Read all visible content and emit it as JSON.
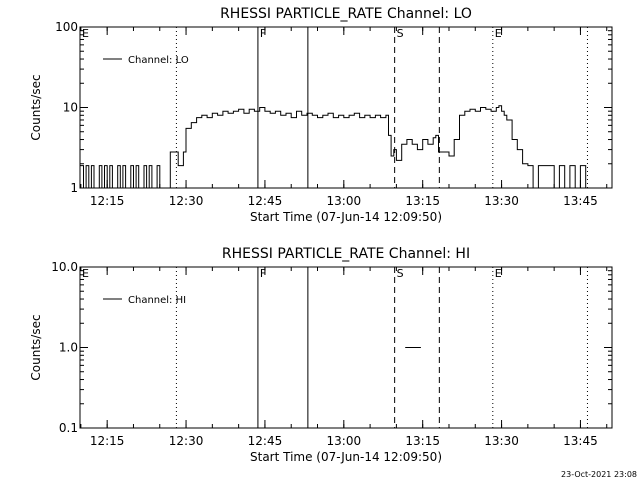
{
  "footer": {
    "timestamp": "23-Oct-2021 23:08"
  },
  "chart_data": [
    {
      "type": "line",
      "title": "RHESSI PARTICLE_RATE Channel: LO",
      "xlabel": "Start Time (07-Jun-14 12:09:50)",
      "ylabel": "Counts/sec",
      "yscale": "log",
      "ylim": [
        1,
        100
      ],
      "yticks": [
        1,
        10,
        100
      ],
      "ytick_labels": [
        "1",
        "10",
        "100"
      ],
      "xlim": [
        "12:09:50",
        "13:51:00"
      ],
      "xticks": [
        "12:15",
        "12:30",
        "12:45",
        "13:00",
        "13:15",
        "13:30",
        "13:45"
      ],
      "legend": {
        "position": "top-left",
        "entries": [
          "Channel: LO"
        ]
      },
      "series": [
        {
          "name": "Channel: LO",
          "x": [
            "12:09:50",
            "12:10:30",
            "12:11:00",
            "12:11:30",
            "12:12:00",
            "12:12:30",
            "12:13:00",
            "12:13:30",
            "12:14:00",
            "12:14:30",
            "12:15:00",
            "12:15:30",
            "12:16:00",
            "12:16:30",
            "12:17:00",
            "12:17:30",
            "12:18:00",
            "12:18:30",
            "12:19:00",
            "12:19:30",
            "12:20:00",
            "12:20:30",
            "12:21:00",
            "12:21:30",
            "12:22:00",
            "12:22:30",
            "12:23:00",
            "12:23:30",
            "12:24:00",
            "12:24:30",
            "12:25:00",
            "12:26:00",
            "12:27:00",
            "12:28:00",
            "12:28:30",
            "12:29:00",
            "12:29:30",
            "12:30:00",
            "12:31:00",
            "12:32:00",
            "12:33:00",
            "12:34:00",
            "12:35:00",
            "12:36:00",
            "12:37:00",
            "12:38:00",
            "12:39:00",
            "12:40:00",
            "12:41:00",
            "12:42:00",
            "12:43:00",
            "12:44:00",
            "12:45:00",
            "12:46:00",
            "12:47:00",
            "12:48:00",
            "12:49:00",
            "12:50:00",
            "12:51:00",
            "12:52:00",
            "12:53:00",
            "12:54:00",
            "12:55:00",
            "12:56:00",
            "12:57:00",
            "12:58:00",
            "12:59:00",
            "13:00:00",
            "13:01:00",
            "13:02:00",
            "13:03:00",
            "13:04:00",
            "13:05:00",
            "13:06:00",
            "13:07:00",
            "13:08:00",
            "13:08:30",
            "13:09:00",
            "13:09:30",
            "13:10:00",
            "13:11:00",
            "13:12:00",
            "13:13:00",
            "13:14:00",
            "13:15:00",
            "13:16:00",
            "13:17:00",
            "13:17:30",
            "13:18:00",
            "13:19:00",
            "13:20:00",
            "13:21:00",
            "13:22:00",
            "13:23:00",
            "13:24:00",
            "13:25:00",
            "13:26:00",
            "13:27:00",
            "13:28:00",
            "13:29:00",
            "13:29:30",
            "13:30:00",
            "13:30:30",
            "13:31:00",
            "13:32:00",
            "13:33:00",
            "13:34:00",
            "13:35:00",
            "13:36:00",
            "13:37:00",
            "13:38:00",
            "13:39:00",
            "13:40:00",
            "13:41:00",
            "13:42:00",
            "13:43:00",
            "13:44:00",
            "13:45:00",
            "13:46:00"
          ],
          "y": [
            1.9,
            1,
            1.9,
            1,
            1.9,
            1,
            1,
            1.9,
            1,
            1.9,
            1,
            1.9,
            1,
            1,
            1.9,
            1,
            1.9,
            1,
            1,
            1.9,
            1,
            1.9,
            1,
            1,
            1.9,
            1,
            1.9,
            1,
            1,
            1.9,
            1,
            1,
            2.8,
            2.8,
            1.9,
            1.9,
            2.8,
            5.5,
            6.5,
            7.5,
            8,
            7.5,
            8.5,
            8,
            9,
            8.5,
            9,
            9.5,
            8.5,
            9.5,
            9,
            10,
            9,
            8.5,
            9,
            8,
            8.5,
            7.5,
            9,
            8,
            8.5,
            8,
            7.5,
            8,
            8.5,
            7.5,
            8,
            7.5,
            8,
            8.5,
            7.5,
            8,
            7.5,
            8,
            7.5,
            8,
            4.5,
            2.5,
            3,
            2.2,
            3.5,
            4,
            3.5,
            3,
            4,
            3.5,
            4.2,
            4.5,
            2.8,
            2.8,
            2.5,
            4,
            8,
            9,
            9.5,
            9,
            10,
            9.5,
            9,
            10,
            10.5,
            9,
            8,
            7,
            4,
            3,
            2,
            1.9,
            1,
            1.9,
            1.9,
            1.9,
            1,
            1.9,
            1,
            1.9,
            1,
            1.9,
            1
          ]
        }
      ],
      "event_lines": [
        {
          "label": "E",
          "time": "12:09:50",
          "style": "dotted"
        },
        {
          "label": "",
          "time": "12:28:10",
          "style": "dotted"
        },
        {
          "label": "F",
          "time": "12:43:40",
          "style": "solid"
        },
        {
          "label": "",
          "time": "12:53:10",
          "style": "solid"
        },
        {
          "label": "S",
          "time": "13:09:40",
          "style": "dashed"
        },
        {
          "label": "",
          "time": "13:18:10",
          "style": "dashed"
        },
        {
          "label": "E",
          "time": "13:28:20",
          "style": "dotted"
        },
        {
          "label": "",
          "time": "13:46:20",
          "style": "dotted"
        }
      ]
    },
    {
      "type": "line",
      "title": "RHESSI PARTICLE_RATE Channel: HI",
      "xlabel": "Start Time (07-Jun-14 12:09:50)",
      "ylabel": "Counts/sec",
      "yscale": "log",
      "ylim": [
        0.1,
        10.0
      ],
      "yticks": [
        0.1,
        1.0,
        10.0
      ],
      "ytick_labels": [
        "0.1",
        "1.0",
        "10.0"
      ],
      "xlim": [
        "12:09:50",
        "13:51:00"
      ],
      "xticks": [
        "12:15",
        "12:30",
        "12:45",
        "13:00",
        "13:15",
        "13:30",
        "13:45"
      ],
      "legend": {
        "position": "top-left",
        "entries": [
          "Channel: HI"
        ]
      },
      "series": [
        {
          "name": "Channel: HI",
          "x": [
            "13:11:40",
            "13:14:40"
          ],
          "y": [
            1.0,
            1.0
          ]
        }
      ],
      "event_lines": [
        {
          "label": "E",
          "time": "12:09:50",
          "style": "dotted"
        },
        {
          "label": "",
          "time": "12:28:10",
          "style": "dotted"
        },
        {
          "label": "F",
          "time": "12:43:40",
          "style": "solid"
        },
        {
          "label": "",
          "time": "12:53:10",
          "style": "solid"
        },
        {
          "label": "S",
          "time": "13:09:40",
          "style": "dashed"
        },
        {
          "label": "",
          "time": "13:18:10",
          "style": "dashed"
        },
        {
          "label": "E",
          "time": "13:28:20",
          "style": "dotted"
        },
        {
          "label": "",
          "time": "13:46:20",
          "style": "dotted"
        }
      ]
    }
  ]
}
